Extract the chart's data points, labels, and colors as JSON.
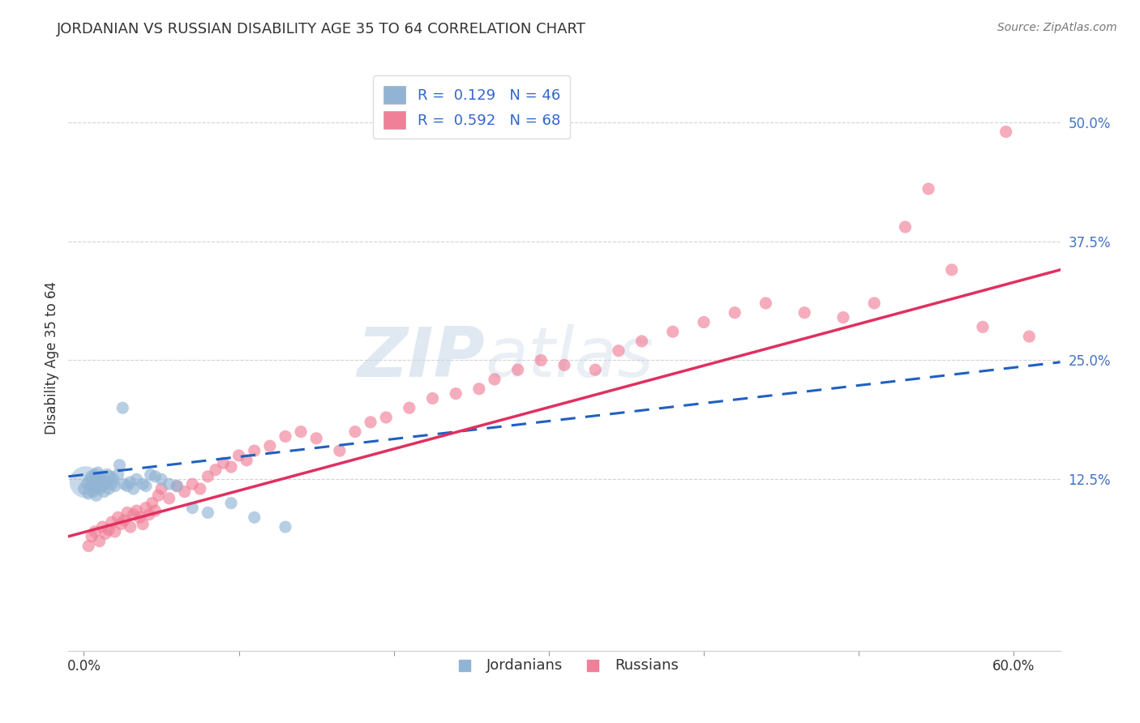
{
  "title": "JORDANIAN VS RUSSIAN DISABILITY AGE 35 TO 64 CORRELATION CHART",
  "source": "Source: ZipAtlas.com",
  "ylabel": "Disability Age 35 to 64",
  "x_ticks": [
    0.0,
    0.1,
    0.2,
    0.3,
    0.4,
    0.5,
    0.6
  ],
  "x_tick_labels": [
    "0.0%",
    "",
    "",
    "",
    "",
    "",
    "60.0%"
  ],
  "y_ticks": [
    0.125,
    0.25,
    0.375,
    0.5
  ],
  "y_tick_labels": [
    "12.5%",
    "25.0%",
    "37.5%",
    "50.0%"
  ],
  "xlim": [
    -0.01,
    0.63
  ],
  "ylim": [
    -0.055,
    0.56
  ],
  "jordanian_R": 0.129,
  "jordanian_N": 46,
  "russian_R": 0.592,
  "russian_N": 68,
  "jordanian_color": "#92b4d4",
  "russian_color": "#f08098",
  "jordanian_line_color": "#2060c0",
  "russian_line_color": "#e03060",
  "legend_label_1": "Jordanians",
  "legend_label_2": "Russians",
  "watermark_zip": "ZIP",
  "watermark_atlas": "atlas",
  "background_color": "#ffffff",
  "grid_color": "#c8c8c8",
  "jordanian_x": [
    0.0,
    0.002,
    0.003,
    0.004,
    0.005,
    0.005,
    0.006,
    0.007,
    0.007,
    0.008,
    0.008,
    0.009,
    0.009,
    0.01,
    0.01,
    0.011,
    0.011,
    0.012,
    0.013,
    0.014,
    0.015,
    0.016,
    0.017,
    0.018,
    0.019,
    0.02,
    0.022,
    0.023,
    0.025,
    0.026,
    0.028,
    0.03,
    0.032,
    0.034,
    0.038,
    0.04,
    0.043,
    0.046,
    0.05,
    0.055,
    0.06,
    0.07,
    0.08,
    0.095,
    0.11,
    0.13
  ],
  "jordanian_y": [
    0.115,
    0.12,
    0.11,
    0.125,
    0.118,
    0.128,
    0.112,
    0.122,
    0.13,
    0.108,
    0.118,
    0.125,
    0.132,
    0.115,
    0.125,
    0.12,
    0.128,
    0.118,
    0.112,
    0.122,
    0.13,
    0.115,
    0.128,
    0.12,
    0.125,
    0.118,
    0.13,
    0.14,
    0.2,
    0.12,
    0.118,
    0.122,
    0.115,
    0.125,
    0.12,
    0.118,
    0.13,
    0.128,
    0.125,
    0.12,
    0.118,
    0.095,
    0.09,
    0.1,
    0.085,
    0.075
  ],
  "russian_x": [
    0.003,
    0.005,
    0.007,
    0.01,
    0.012,
    0.014,
    0.016,
    0.018,
    0.02,
    0.022,
    0.024,
    0.026,
    0.028,
    0.03,
    0.032,
    0.034,
    0.036,
    0.038,
    0.04,
    0.042,
    0.044,
    0.046,
    0.048,
    0.05,
    0.055,
    0.06,
    0.065,
    0.07,
    0.075,
    0.08,
    0.085,
    0.09,
    0.095,
    0.1,
    0.105,
    0.11,
    0.12,
    0.13,
    0.14,
    0.15,
    0.165,
    0.175,
    0.185,
    0.195,
    0.21,
    0.225,
    0.24,
    0.255,
    0.265,
    0.28,
    0.295,
    0.31,
    0.33,
    0.345,
    0.36,
    0.38,
    0.4,
    0.42,
    0.44,
    0.465,
    0.49,
    0.51,
    0.53,
    0.545,
    0.56,
    0.58,
    0.595,
    0.61
  ],
  "russian_y": [
    0.055,
    0.065,
    0.07,
    0.06,
    0.075,
    0.068,
    0.072,
    0.08,
    0.07,
    0.085,
    0.078,
    0.082,
    0.09,
    0.075,
    0.088,
    0.092,
    0.085,
    0.078,
    0.095,
    0.088,
    0.1,
    0.092,
    0.108,
    0.115,
    0.105,
    0.118,
    0.112,
    0.12,
    0.115,
    0.128,
    0.135,
    0.142,
    0.138,
    0.15,
    0.145,
    0.155,
    0.16,
    0.17,
    0.175,
    0.168,
    0.155,
    0.175,
    0.185,
    0.19,
    0.2,
    0.21,
    0.215,
    0.22,
    0.23,
    0.24,
    0.25,
    0.245,
    0.24,
    0.26,
    0.27,
    0.28,
    0.29,
    0.3,
    0.31,
    0.3,
    0.295,
    0.31,
    0.39,
    0.43,
    0.345,
    0.285,
    0.49,
    0.275
  ],
  "dot_size": 120,
  "dot_alpha": 0.65
}
